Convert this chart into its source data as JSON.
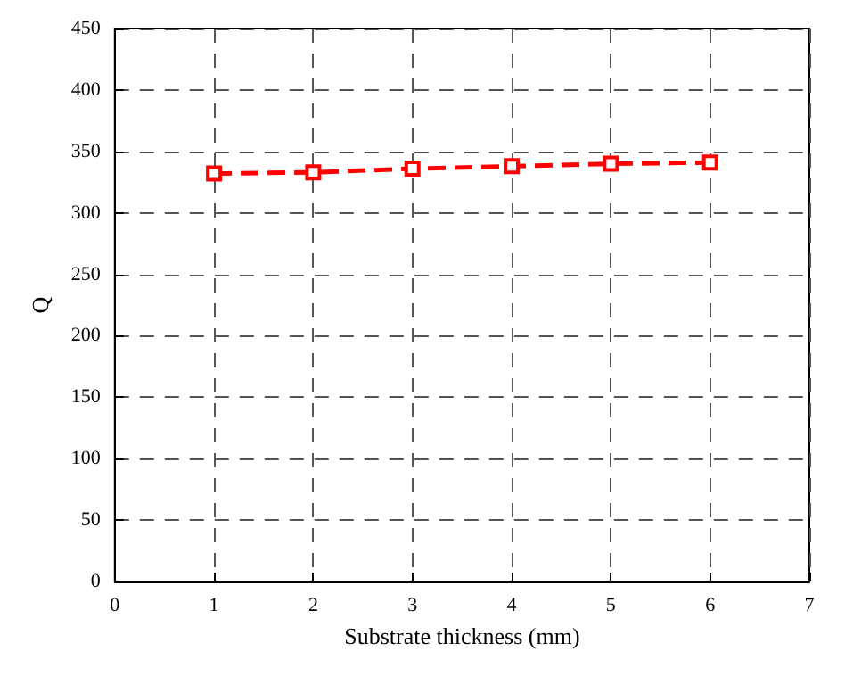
{
  "chart_data": {
    "type": "line",
    "xlabel": "Substrate thickness (mm)",
    "ylabel": "Q",
    "x": [
      1,
      2,
      3,
      4,
      5,
      6
    ],
    "series": [
      {
        "color": "#ff0000",
        "values": [
          332,
          333,
          336,
          338,
          340,
          341
        ]
      }
    ],
    "xlim": [
      0,
      7
    ],
    "xticks": [
      0,
      1,
      2,
      3,
      4,
      5,
      6,
      7
    ],
    "ylim": [
      0,
      450
    ],
    "yticks": [
      0,
      50,
      100,
      150,
      200,
      250,
      300,
      350,
      400,
      450
    ],
    "grid": true,
    "marker": "square",
    "line_style": "dashed"
  }
}
